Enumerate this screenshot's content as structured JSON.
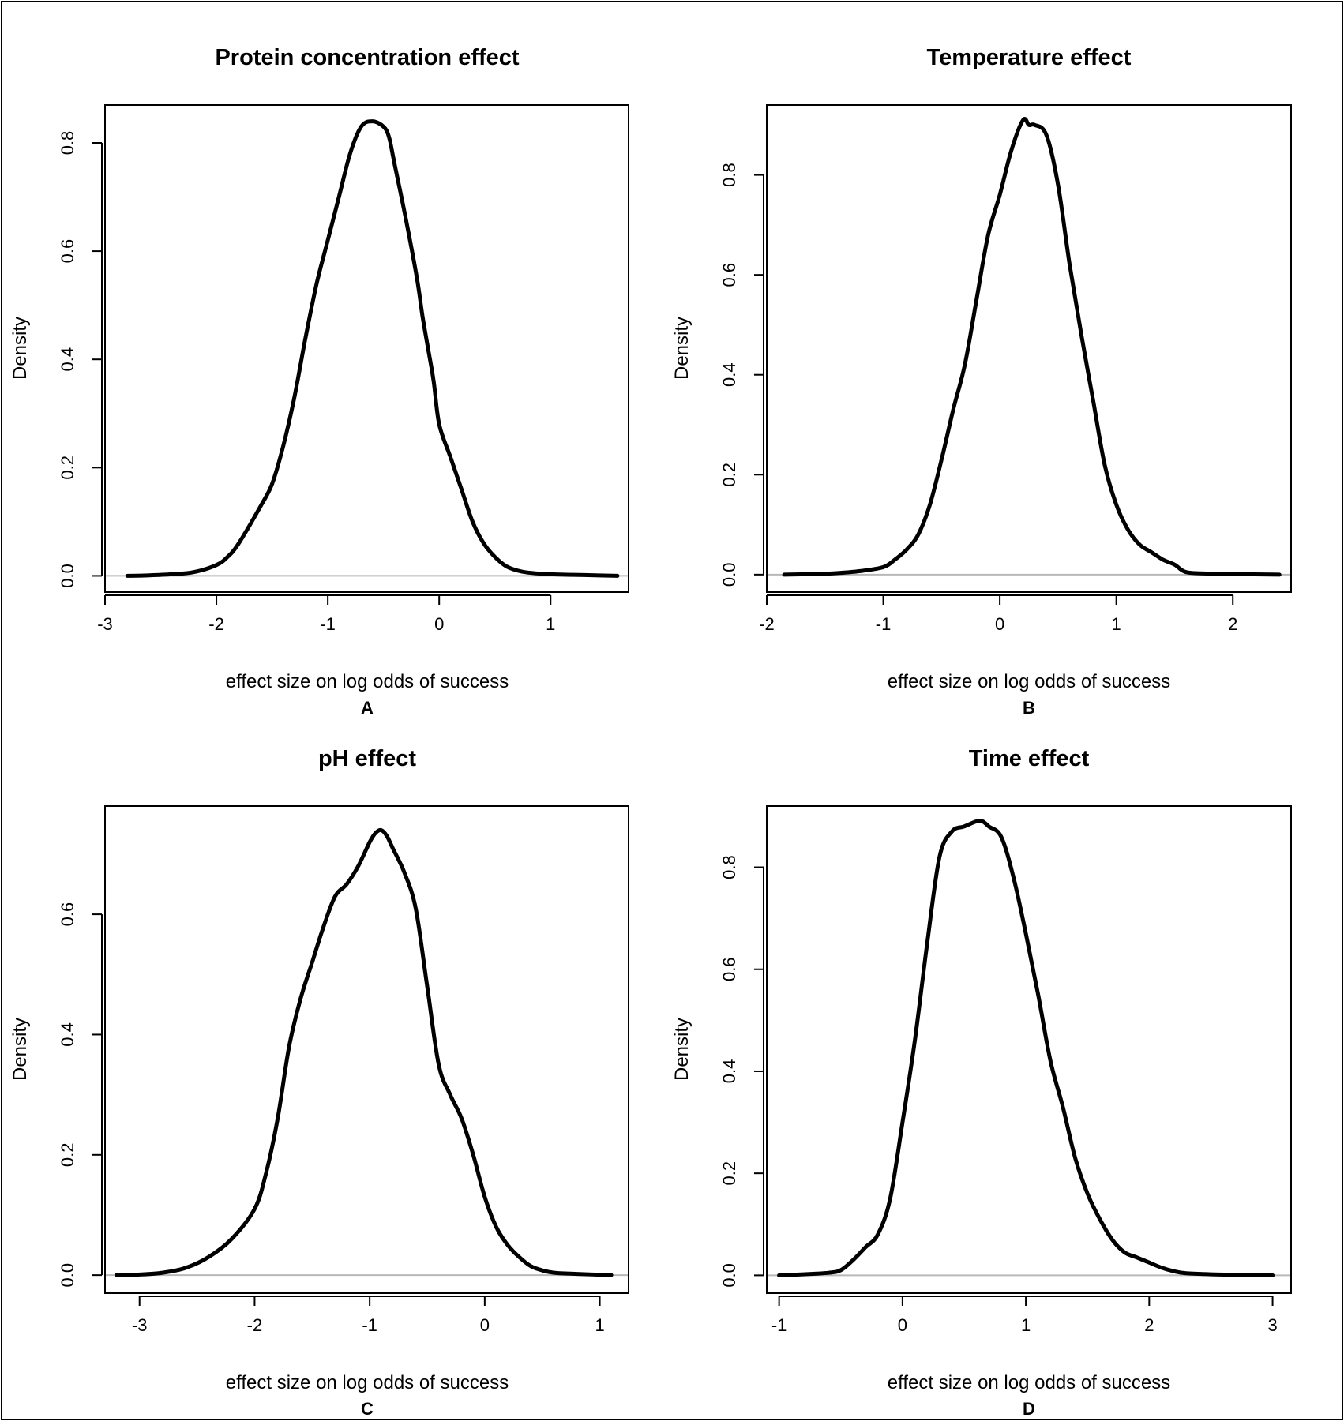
{
  "chart_data": [
    {
      "type": "line",
      "panel": "A",
      "title": "Protein concentration effect",
      "xlabel": "effect size on log odds of success",
      "ylabel": "Density",
      "xticks": [
        "-3",
        "-2",
        "-1",
        "0",
        "1"
      ],
      "yticks": [
        "0.0",
        "0.2",
        "0.4",
        "0.6",
        "0.8"
      ],
      "xlim": [
        -3.0,
        1.7
      ],
      "ylim": [
        -0.03,
        0.87
      ],
      "grid": false,
      "baseline": 0,
      "series": [
        {
          "x": [
            -2.8,
            -2.6,
            -2.4,
            -2.2,
            -2.0,
            -1.9,
            -1.8,
            -1.6,
            -1.5,
            -1.4,
            -1.3,
            -1.2,
            -1.1,
            -1.0,
            -0.9,
            -0.8,
            -0.7,
            -0.6,
            -0.5,
            -0.45,
            -0.4,
            -0.3,
            -0.2,
            -0.15,
            -0.1,
            -0.05,
            0.0,
            0.1,
            0.2,
            0.3,
            0.4,
            0.5,
            0.6,
            0.7,
            0.8,
            1.0,
            1.2,
            1.4,
            1.6
          ],
          "y": [
            0.0,
            0.001,
            0.003,
            0.007,
            0.02,
            0.035,
            0.06,
            0.13,
            0.17,
            0.24,
            0.33,
            0.44,
            0.54,
            0.62,
            0.7,
            0.78,
            0.83,
            0.84,
            0.83,
            0.81,
            0.76,
            0.66,
            0.55,
            0.48,
            0.42,
            0.36,
            0.28,
            0.22,
            0.16,
            0.1,
            0.06,
            0.035,
            0.018,
            0.01,
            0.006,
            0.003,
            0.002,
            0.001,
            0.0
          ]
        }
      ]
    },
    {
      "type": "line",
      "panel": "B",
      "title": "Temperature effect",
      "xlabel": "effect size on log odds of success",
      "ylabel": "Density",
      "xticks": [
        "-2",
        "-1",
        "0",
        "1",
        "2"
      ],
      "yticks": [
        "0.0",
        "0.2",
        "0.4",
        "0.6",
        "0.8"
      ],
      "xlim": [
        -2.0,
        2.5
      ],
      "ylim": [
        -0.035,
        0.94
      ],
      "grid": false,
      "baseline": 0,
      "series": [
        {
          "x": [
            -1.85,
            -1.6,
            -1.4,
            -1.2,
            -1.0,
            -0.9,
            -0.8,
            -0.7,
            -0.6,
            -0.5,
            -0.4,
            -0.3,
            -0.2,
            -0.1,
            0.0,
            0.1,
            0.2,
            0.25,
            0.3,
            0.4,
            0.5,
            0.6,
            0.7,
            0.8,
            0.9,
            1.0,
            1.1,
            1.2,
            1.3,
            1.4,
            1.5,
            1.6,
            1.8,
            2.0,
            2.4
          ],
          "y": [
            0.0,
            0.001,
            0.003,
            0.007,
            0.015,
            0.03,
            0.05,
            0.08,
            0.14,
            0.23,
            0.33,
            0.42,
            0.55,
            0.68,
            0.76,
            0.85,
            0.91,
            0.9,
            0.9,
            0.88,
            0.78,
            0.62,
            0.48,
            0.35,
            0.22,
            0.14,
            0.09,
            0.06,
            0.045,
            0.03,
            0.02,
            0.005,
            0.002,
            0.001,
            0.0
          ]
        }
      ]
    },
    {
      "type": "line",
      "panel": "C",
      "title": "pH effect",
      "xlabel": "effect size on log odds of success",
      "ylabel": "Density",
      "xticks": [
        "-3",
        "-2",
        "-1",
        "0",
        "1"
      ],
      "yticks": [
        "0.0",
        "0.2",
        "0.4",
        "0.6"
      ],
      "xlim": [
        -3.3,
        1.25
      ],
      "ylim": [
        -0.03,
        0.78
      ],
      "grid": false,
      "baseline": 0,
      "series": [
        {
          "x": [
            -3.2,
            -3.0,
            -2.8,
            -2.6,
            -2.4,
            -2.2,
            -2.0,
            -1.9,
            -1.8,
            -1.7,
            -1.6,
            -1.5,
            -1.4,
            -1.3,
            -1.2,
            -1.1,
            -1.0,
            -0.95,
            -0.9,
            -0.85,
            -0.8,
            -0.7,
            -0.6,
            -0.5,
            -0.4,
            -0.3,
            -0.2,
            -0.1,
            0.0,
            0.1,
            0.2,
            0.3,
            0.4,
            0.5,
            0.6,
            0.8,
            1.1
          ],
          "y": [
            0.0,
            0.001,
            0.004,
            0.012,
            0.03,
            0.06,
            0.11,
            0.17,
            0.26,
            0.38,
            0.46,
            0.52,
            0.58,
            0.63,
            0.65,
            0.68,
            0.72,
            0.735,
            0.74,
            0.73,
            0.71,
            0.67,
            0.61,
            0.48,
            0.35,
            0.3,
            0.26,
            0.2,
            0.13,
            0.08,
            0.05,
            0.03,
            0.015,
            0.008,
            0.004,
            0.002,
            0.0
          ]
        }
      ]
    },
    {
      "type": "line",
      "panel": "D",
      "title": "Time effect",
      "xlabel": "effect size on log odds of success",
      "ylabel": "Density",
      "xticks": [
        "-1",
        "0",
        "1",
        "2",
        "3"
      ],
      "yticks": [
        "0.0",
        "0.2",
        "0.4",
        "0.6",
        "0.8"
      ],
      "xlim": [
        -1.1,
        3.15
      ],
      "ylim": [
        -0.035,
        0.92
      ],
      "grid": false,
      "baseline": 0,
      "series": [
        {
          "x": [
            -1.0,
            -0.8,
            -0.6,
            -0.5,
            -0.4,
            -0.3,
            -0.2,
            -0.1,
            0.0,
            0.1,
            0.2,
            0.3,
            0.4,
            0.5,
            0.6,
            0.65,
            0.7,
            0.8,
            0.9,
            1.0,
            1.1,
            1.2,
            1.3,
            1.4,
            1.5,
            1.6,
            1.7,
            1.8,
            1.9,
            2.0,
            2.1,
            2.2,
            2.3,
            2.5,
            2.7,
            3.0
          ],
          "y": [
            0.0,
            0.002,
            0.005,
            0.01,
            0.03,
            0.055,
            0.08,
            0.15,
            0.3,
            0.46,
            0.65,
            0.82,
            0.87,
            0.88,
            0.89,
            0.89,
            0.88,
            0.86,
            0.78,
            0.67,
            0.55,
            0.42,
            0.33,
            0.23,
            0.16,
            0.11,
            0.07,
            0.045,
            0.035,
            0.025,
            0.015,
            0.008,
            0.004,
            0.002,
            0.001,
            0.0
          ]
        }
      ]
    }
  ]
}
